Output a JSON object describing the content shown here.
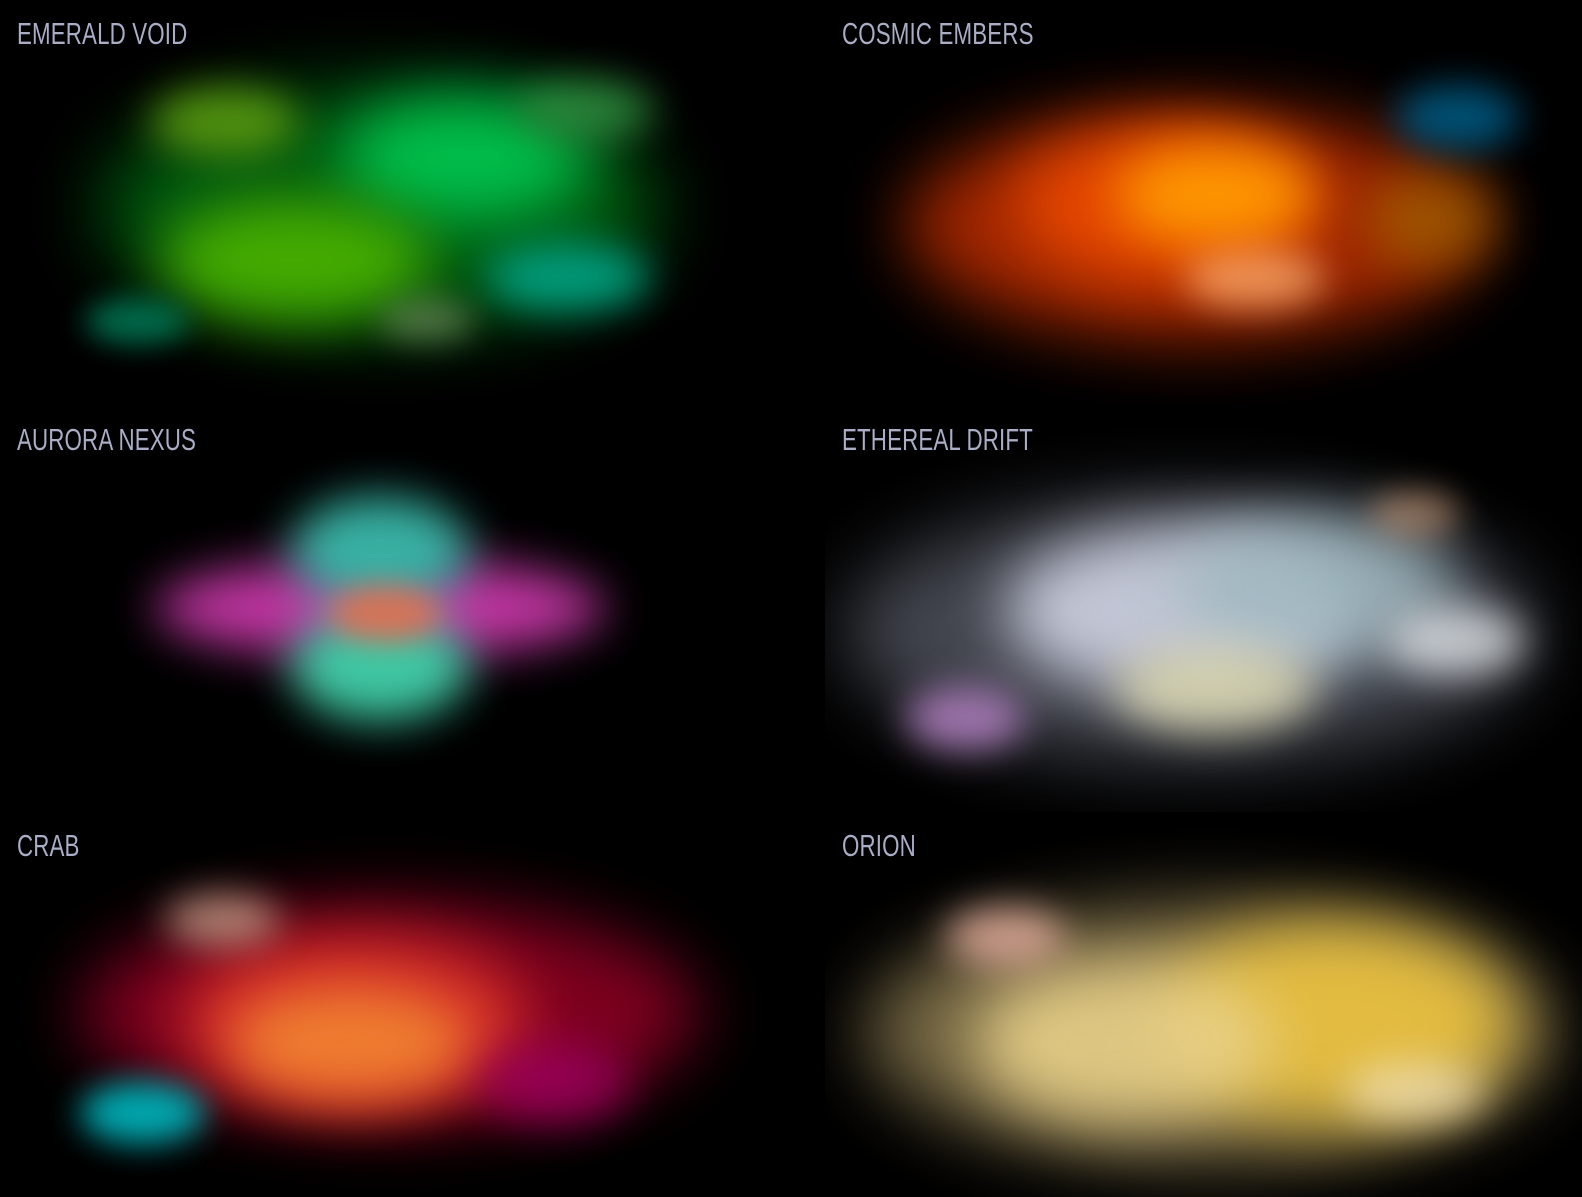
{
  "panels": [
    {
      "id": "emerald",
      "title": "EMERALD VOID",
      "colors": [
        "#007a14",
        "#00c850",
        "#48b000",
        "#5a9a10",
        "#00a080",
        "#2e8c3e",
        "#00704e",
        "#6c8a5a"
      ]
    },
    {
      "id": "embers",
      "title": "COSMIC EMBERS",
      "colors": [
        "#e03a00",
        "#ff9a00",
        "#a02200",
        "#ffb070",
        "#00547a"
      ]
    },
    {
      "id": "aurora",
      "title": "AURORA NEXUS",
      "colors": [
        "#d040b0",
        "#40c8a8",
        "#e07050"
      ]
    },
    {
      "id": "ethereal",
      "title": "ETHEREAL DRIFT",
      "colors": [
        "#c8ccdc",
        "#9fb8c0",
        "#dcd8b0",
        "#b080c0",
        "#e0e4e8",
        "#e0a880"
      ]
    },
    {
      "id": "crab",
      "title": "CRAB",
      "colors": [
        "#b0102a",
        "#f08030",
        "#e05030",
        "#a00060",
        "#00b8c0",
        "#d0a890"
      ]
    },
    {
      "id": "orion",
      "title": "ORION",
      "colors": [
        "#e8c040",
        "#f0d890",
        "#8a7a50",
        "#e8b0a0",
        "#f8e8c0"
      ]
    }
  ]
}
